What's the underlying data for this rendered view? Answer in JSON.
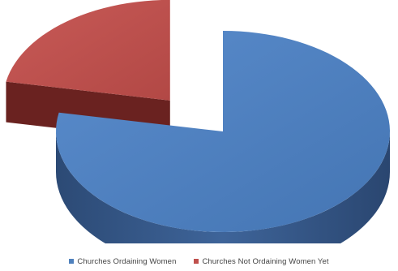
{
  "chart_data": {
    "type": "pie",
    "style": "3d",
    "exploded": true,
    "title": "",
    "slices": [
      {
        "label": "Churches Ordaining Women",
        "value": 78,
        "color": "#4f81bd"
      },
      {
        "label": "Churches Not Ordaining Women Yet",
        "value": 22,
        "color": "#c0504d"
      }
    ],
    "legend": {
      "position": "bottom",
      "entries": [
        "Churches Ordaining Women",
        "Churches Not Ordaining Women Yet"
      ]
    }
  }
}
